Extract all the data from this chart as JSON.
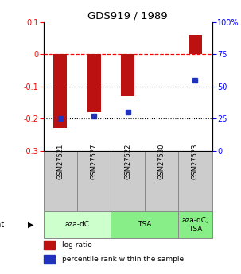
{
  "title": "GDS919 / 1989",
  "samples": [
    "GSM27521",
    "GSM27527",
    "GSM27522",
    "GSM27530",
    "GSM27523"
  ],
  "log_ratios": [
    -0.23,
    -0.18,
    -0.13,
    0.0,
    0.06
  ],
  "percentile_ranks": [
    25,
    27,
    30,
    null,
    55
  ],
  "ylim_left": [
    -0.3,
    0.1
  ],
  "ylim_right": [
    0,
    100
  ],
  "yticks_left": [
    0.1,
    0.0,
    -0.1,
    -0.2,
    -0.3
  ],
  "yticks_right": [
    100,
    75,
    50,
    25,
    0
  ],
  "bar_color": "#bb1111",
  "dot_color": "#2233bb",
  "bar_width": 0.4,
  "group_configs": [
    {
      "label": "aza-dC",
      "start": 0,
      "end": 2,
      "color": "#ccffcc"
    },
    {
      "label": "TSA",
      "start": 2,
      "end": 4,
      "color": "#88ee88"
    },
    {
      "label": "aza-dC,\nTSA",
      "start": 4,
      "end": 5,
      "color": "#88ee88"
    }
  ],
  "legend_items": [
    {
      "color": "#bb1111",
      "label": "log ratio"
    },
    {
      "color": "#2233bb",
      "label": "percentile rank within the sample"
    }
  ]
}
